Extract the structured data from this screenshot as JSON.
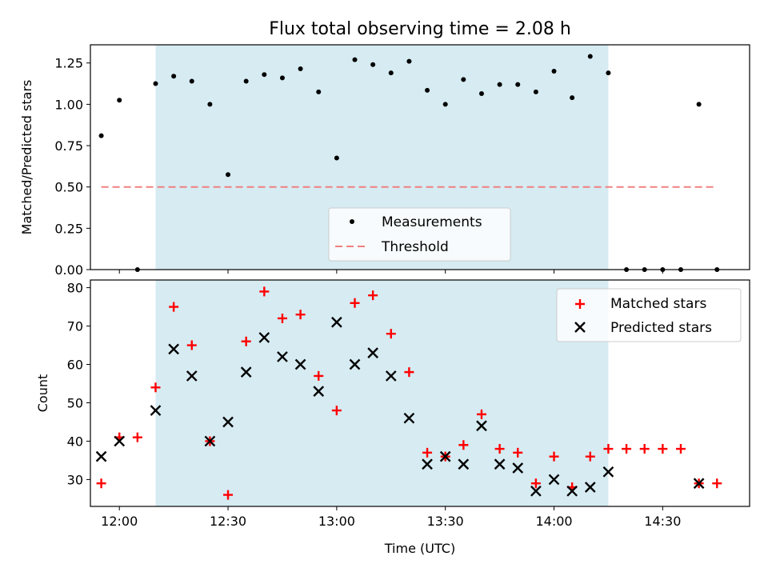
{
  "chart_data": [
    {
      "type": "scatter",
      "title": "Flux total observing time = 2.08 h",
      "xlabel": "",
      "ylabel": "Matched/Predicted stars",
      "xlim": [
        "11:52",
        "14:54"
      ],
      "ylim": [
        0,
        1.36
      ],
      "yticks": [
        "0.00",
        "0.25",
        "0.50",
        "0.75",
        "1.00",
        "1.25"
      ],
      "shaded_span": [
        "12:10",
        "14:15"
      ],
      "threshold": {
        "y": 0.5,
        "x_start": "11:55",
        "x_end": "14:45",
        "color": "#f08080"
      },
      "series": [
        {
          "name": "Measurements",
          "x": [
            "11:55",
            "12:00",
            "12:05",
            "12:10",
            "12:15",
            "12:20",
            "12:25",
            "12:30",
            "12:35",
            "12:40",
            "12:45",
            "12:50",
            "12:55",
            "13:00",
            "13:05",
            "13:10",
            "13:15",
            "13:20",
            "13:25",
            "13:30",
            "13:35",
            "13:40",
            "13:45",
            "13:50",
            "13:55",
            "14:00",
            "14:05",
            "14:10",
            "14:15",
            "14:20",
            "14:25",
            "14:30",
            "14:35",
            "14:40",
            "14:45"
          ],
          "y": [
            0.81,
            1.025,
            0.0,
            1.125,
            1.17,
            1.14,
            1.0,
            0.575,
            1.14,
            1.18,
            1.16,
            1.215,
            1.075,
            0.675,
            1.27,
            1.24,
            1.19,
            1.26,
            1.085,
            1.0,
            1.15,
            1.065,
            1.12,
            1.12,
            1.075,
            1.2,
            1.04,
            1.29,
            1.19,
            0.0,
            0.0,
            0.0,
            0.0,
            1.0,
            0.0
          ]
        }
      ],
      "legend": {
        "location": "lower center",
        "entries": [
          "Measurements",
          "Threshold"
        ]
      }
    },
    {
      "type": "scatter",
      "xlabel": "Time (UTC)",
      "ylabel": "Count",
      "xlim": [
        "11:52",
        "14:54"
      ],
      "ylim": [
        23,
        82
      ],
      "yticks": [
        "30",
        "40",
        "50",
        "60",
        "70",
        "80"
      ],
      "xticks": [
        "12:00",
        "12:30",
        "13:00",
        "13:30",
        "14:00",
        "14:30"
      ],
      "shaded_span": [
        "12:10",
        "14:15"
      ],
      "series": [
        {
          "name": "Matched stars",
          "color": "#ff0000",
          "marker": "plus",
          "x": [
            "11:55",
            "12:00",
            "12:05",
            "12:10",
            "12:15",
            "12:20",
            "12:25",
            "12:30",
            "12:35",
            "12:40",
            "12:45",
            "12:50",
            "12:55",
            "13:00",
            "13:05",
            "13:10",
            "13:15",
            "13:20",
            "13:25",
            "13:30",
            "13:35",
            "13:40",
            "13:45",
            "13:50",
            "13:55",
            "14:00",
            "14:05",
            "14:10",
            "14:15",
            "14:20",
            "14:25",
            "14:30",
            "14:35",
            "14:40",
            "14:45"
          ],
          "y": [
            29,
            41,
            41,
            54,
            75,
            65,
            40,
            26,
            66,
            79,
            72,
            73,
            57,
            48,
            76,
            78,
            68,
            58,
            37,
            36,
            39,
            47,
            38,
            37,
            29,
            36,
            28,
            36,
            38,
            38,
            38,
            38,
            38,
            29,
            29
          ]
        },
        {
          "name": "Predicted stars",
          "color": "#000000",
          "marker": "x",
          "x": [
            "11:55",
            "12:00",
            "12:10",
            "12:15",
            "12:20",
            "12:25",
            "12:30",
            "12:35",
            "12:40",
            "12:45",
            "12:50",
            "12:55",
            "13:00",
            "13:05",
            "13:10",
            "13:15",
            "13:20",
            "13:25",
            "13:30",
            "13:35",
            "13:40",
            "13:45",
            "13:50",
            "13:55",
            "14:00",
            "14:05",
            "14:10",
            "14:15",
            "14:40"
          ],
          "y": [
            36,
            40,
            48,
            64,
            57,
            40,
            45,
            58,
            67,
            62,
            60,
            53,
            71,
            60,
            63,
            57,
            46,
            34,
            36,
            34,
            44,
            34,
            33,
            27,
            30,
            27,
            28,
            32,
            29
          ]
        }
      ],
      "legend": {
        "location": "upper right",
        "entries": [
          "Matched stars",
          "Predicted stars"
        ]
      }
    }
  ]
}
